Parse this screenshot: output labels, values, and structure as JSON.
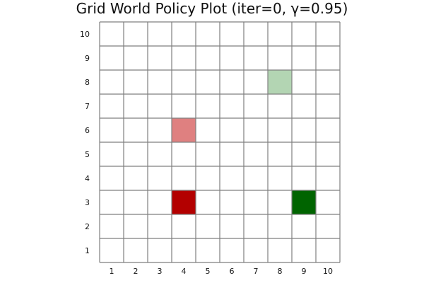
{
  "chart_data": {
    "type": "heatmap",
    "title": "Grid World Policy Plot (iter=0, γ=0.95)",
    "x_ticks": [
      "1",
      "2",
      "3",
      "4",
      "5",
      "6",
      "7",
      "8",
      "9",
      "10"
    ],
    "y_ticks": [
      "1",
      "2",
      "3",
      "4",
      "5",
      "6",
      "7",
      "8",
      "9",
      "10"
    ],
    "xlim": [
      0.5,
      10.5
    ],
    "ylim": [
      0.5,
      10.5
    ],
    "grid": true,
    "cells": [
      {
        "x": 4,
        "y": 3,
        "color": "#b30000"
      },
      {
        "x": 4,
        "y": 6,
        "color": "#df8080"
      },
      {
        "x": 8,
        "y": 8,
        "color": "#b3d5b3"
      },
      {
        "x": 9,
        "y": 3,
        "color": "#006400"
      }
    ],
    "grid_color": "#7f7f7f"
  }
}
